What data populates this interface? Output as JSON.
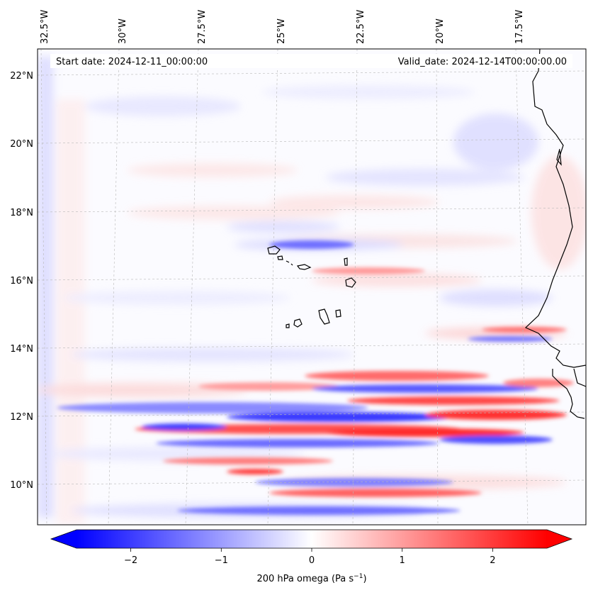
{
  "header": {
    "start_date": "Start date: 2024-12-11_00:00:00",
    "valid_date": "Valid_date: 2024-12-14T00:00:00.00"
  },
  "map": {
    "lon_labels": [
      "32.5°W",
      "30°W",
      "27.5°W",
      "25°W",
      "22.5°W",
      "20°W",
      "17.5°W"
    ],
    "lat_labels": [
      "22°N",
      "20°N",
      "18°N",
      "16°N",
      "14°N",
      "12°N",
      "10°N"
    ],
    "lon_values": [
      -32.5,
      -30,
      -27.5,
      -25,
      -22.5,
      -20,
      -17.5
    ],
    "lat_values": [
      22,
      20,
      18,
      16,
      14,
      12,
      10
    ],
    "lon_range": [
      -32.5,
      -15.0
    ],
    "lat_range": [
      8.9,
      22.7
    ],
    "variable": "200 hPa omega",
    "units": "Pa s^-1",
    "field_description_bands": [
      {
        "lat": 12.8,
        "lon_start": -24.5,
        "lon_end": -17,
        "sign": "positive",
        "strength": 2.0
      },
      {
        "lat": 12.4,
        "lon_start": -23.5,
        "lon_end": -16,
        "sign": "negative",
        "strength": 1.8
      },
      {
        "lat": 12.0,
        "lon_start": -32,
        "lon_end": -15,
        "sign": "negative",
        "strength": 1.3
      },
      {
        "lat": 11.6,
        "lon_start": -29,
        "lon_end": -16,
        "sign": "positive",
        "strength": 2.0
      },
      {
        "lat": 11.2,
        "lon_start": -29,
        "lon_end": -17,
        "sign": "negative",
        "strength": 1.5
      },
      {
        "lat": 10.4,
        "lon_start": -26,
        "lon_end": -18,
        "sign": "positive",
        "strength": 1.5
      },
      {
        "lat": 16.8,
        "lon_start": -25,
        "lon_end": -19,
        "sign": "negative",
        "strength": 0.7
      },
      {
        "lat": 16.2,
        "lon_start": -25,
        "lon_end": -17,
        "sign": "positive",
        "strength": 0.5
      },
      {
        "lat": 19.8,
        "lon_start": -24,
        "lon_end": -18,
        "sign": "negative",
        "strength": 0.5
      },
      {
        "lat": 14.8,
        "lon_start": -19,
        "lon_end": -15,
        "sign": "positive",
        "strength": 0.8
      }
    ]
  },
  "colorbar": {
    "label_prefix": "200 hPa omega (Pa s",
    "label_exp": "−1",
    "label_suffix": ")",
    "tick_labels": [
      "−2",
      "−1",
      "0",
      "1",
      "2"
    ],
    "tick_values": [
      -2,
      -1,
      0,
      1,
      2
    ],
    "vmin": -2.6,
    "vmax": 2.6,
    "colormap": "bwr",
    "color_min": "#0000ff",
    "color_mid": "#ffffff",
    "color_max": "#ff0000"
  }
}
